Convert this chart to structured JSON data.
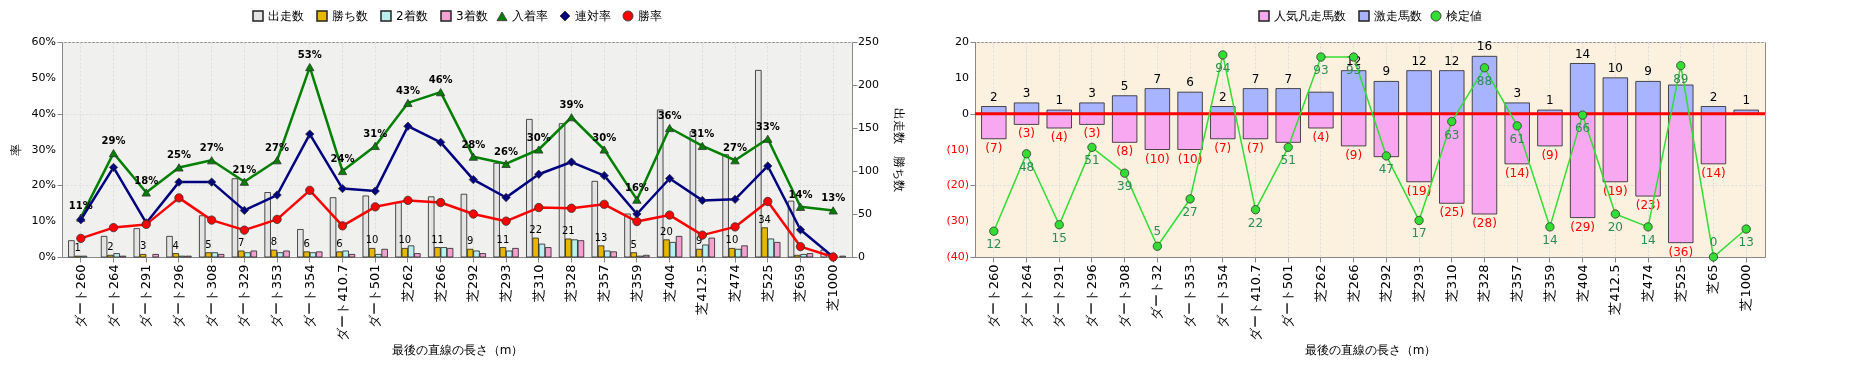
{
  "chart_data": [
    {
      "type": "bar",
      "xlabel": "最後の直線の長さ（m）",
      "ylabel": "率",
      "y2label": "出走数　勝ち数",
      "grid": true,
      "legend": "top",
      "categories": [
        "ダート260",
        "ダート264",
        "ダート291",
        "ダート296",
        "ダート308",
        "ダート329",
        "ダート353",
        "ダート354",
        "ダート410.7",
        "ダート501",
        "芝262",
        "芝266",
        "芝292",
        "芝293",
        "芝310",
        "芝328",
        "芝357",
        "芝359",
        "芝404",
        "芝412.5",
        "芝474",
        "芝525",
        "芝659",
        "芝1000"
      ],
      "ylim": [
        0,
        60
      ],
      "yticks": [
        {
          "value": 0,
          "label": "0%"
        },
        {
          "value": 10,
          "label": "10%"
        },
        {
          "value": 20,
          "label": "20%"
        },
        {
          "value": 30,
          "label": "30%"
        },
        {
          "value": 40,
          "label": "40%"
        },
        {
          "value": 50,
          "label": "50%"
        },
        {
          "value": 60,
          "label": "60%"
        }
      ],
      "y2lim": [
        0,
        250
      ],
      "y2ticks": [
        0,
        50,
        100,
        150,
        200,
        250
      ],
      "series": [
        {
          "name": "出走数",
          "axis": "y2",
          "color": "#e4e4e4",
          "values": [
            19,
            24,
            33,
            24,
            48,
            91,
            75,
            32,
            69,
            71,
            63,
            70,
            73,
            109,
            160,
            155,
            88,
            50,
            171,
            146,
            119,
            217,
            65,
            8
          ]
        },
        {
          "name": "勝ち数",
          "axis": "y2",
          "color": "#e8b800",
          "values": [
            1,
            2,
            3,
            4,
            5,
            7,
            8,
            6,
            6,
            10,
            10,
            11,
            9,
            11,
            22,
            21,
            13,
            5,
            20,
            9,
            10,
            34,
            2,
            0
          ],
          "value_labels": [
            "1",
            "2",
            "3",
            "4",
            "5",
            "7",
            "8",
            "6",
            "6",
            "10",
            "10",
            "11",
            "9",
            "11",
            "22",
            "21",
            "13",
            "5",
            "20",
            "9",
            "10",
            "34",
            null,
            null
          ]
        },
        {
          "name": "2着数",
          "axis": "y2",
          "color": "#b8f0f0",
          "values": [
            1,
            4,
            0,
            1,
            5,
            5,
            5,
            5,
            7,
            3,
            13,
            11,
            7,
            7,
            15,
            20,
            7,
            1,
            17,
            14,
            9,
            21,
            3,
            0
          ]
        },
        {
          "name": "3着数",
          "axis": "y2",
          "color": "#f4a0d0",
          "values": [
            0,
            1,
            3,
            1,
            3,
            7,
            7,
            6,
            3,
            9,
            4,
            10,
            4,
            10,
            11,
            19,
            6,
            2,
            24,
            22,
            13,
            17,
            4,
            1
          ]
        },
        {
          "name": "入着率",
          "type": "line",
          "color": "#008000",
          "marker": "triangle",
          "values": [
            11,
            29,
            18,
            25,
            27,
            21,
            27,
            53,
            24,
            31,
            43,
            46,
            28,
            26,
            30,
            39,
            30,
            16,
            36,
            31,
            27,
            33,
            14,
            13
          ],
          "value_labels": [
            "11%",
            "29%",
            "18%",
            "25%",
            "27%",
            "21%",
            "27%",
            "53%",
            "24%",
            "31%",
            "43%",
            "46%",
            "28%",
            "26%",
            "30%",
            "39%",
            "30%",
            "16%",
            "36%",
            "31%",
            "27%",
            "33%",
            "14%",
            "13%"
          ]
        },
        {
          "name": "連対率",
          "type": "line",
          "color": "#000080",
          "marker": "diamond",
          "values": [
            10.4,
            25,
            9.5,
            20.9,
            20.9,
            13,
            17.3,
            34.3,
            19.1,
            18.4,
            36.5,
            32,
            21.6,
            16.6,
            23.1,
            26.5,
            22.7,
            12,
            21.9,
            15.8,
            16.1,
            25.4,
            7.6,
            0
          ]
        },
        {
          "name": "勝率",
          "type": "line",
          "color": "#ff0000",
          "marker": "circle",
          "values": [
            5.2,
            8.2,
            9.1,
            16.5,
            10.3,
            7.5,
            10.5,
            18.6,
            8.7,
            14,
            15.8,
            15.2,
            12,
            10,
            13.8,
            13.6,
            14.7,
            9.9,
            11.7,
            6.1,
            8.4,
            15.5,
            2.9,
            0
          ]
        }
      ]
    },
    {
      "type": "bar",
      "xlabel": "最後の直線の長さ（m）",
      "grid": true,
      "legend": "top",
      "stacked": true,
      "categories": [
        "ダート260",
        "ダート264",
        "ダート291",
        "ダート296",
        "ダート308",
        "ダート32",
        "ダート353",
        "ダート354",
        "ダート410.7",
        "ダート501",
        "芝262",
        "芝266",
        "芝292",
        "芝293",
        "芝310",
        "芝328",
        "芝357",
        "芝359",
        "芝404",
        "芝412.5",
        "芝474",
        "芝525",
        "芝65",
        "芝1000"
      ],
      "ylim": [
        -40,
        20
      ],
      "yticks": [
        {
          "value": -40,
          "label": "(40)"
        },
        {
          "value": -30,
          "label": "(30)"
        },
        {
          "value": -20,
          "label": "(20)"
        },
        {
          "value": -10,
          "label": "(10)"
        },
        0,
        10,
        20
      ],
      "y2lim": [
        0,
        100
      ],
      "ref_lines": [
        {
          "axis": "y",
          "value": 0,
          "color": "#ff0000"
        }
      ],
      "series": [
        {
          "name": "人気凡走馬数",
          "color": "#f8a8f0",
          "values": [
            -7,
            -3,
            -4,
            -3,
            -8,
            -10,
            -10,
            -7,
            -7,
            -8,
            -4,
            -9,
            -12,
            -19,
            -25,
            -28,
            -14,
            -9,
            -29,
            -19,
            -23,
            -36,
            -14,
            null
          ],
          "value_labels": [
            "(7)",
            "(3)",
            "(4)",
            "(3)",
            "(8)",
            "(10)",
            "(10)",
            "(7)",
            "(7)",
            null,
            "(4)",
            "(9)",
            null,
            "(19)",
            "(25)",
            "(28)",
            "(14)",
            "(9)",
            "(29)",
            "(19)",
            "(23)",
            "(36)",
            "(14)",
            null
          ]
        },
        {
          "name": "激走馬数",
          "color": "#a8b4ff",
          "values": [
            2,
            3,
            1,
            3,
            5,
            7,
            6,
            2,
            7,
            7,
            6,
            12,
            9,
            12,
            12,
            16,
            3,
            1,
            14,
            10,
            9,
            8,
            2,
            1
          ],
          "value_labels": [
            "2",
            "3",
            "1",
            "3",
            "5",
            "7",
            "6",
            "2",
            "7",
            "7",
            null,
            "12",
            "9",
            "12",
            "12",
            "16",
            "3",
            "1",
            "14",
            "10",
            "9",
            null,
            "2",
            "1"
          ]
        },
        {
          "name": "検定値",
          "type": "line",
          "axis": "y2",
          "color": "#33dd33",
          "marker": "circle",
          "values": [
            12,
            48,
            15,
            51,
            39,
            5,
            27,
            94,
            22,
            51,
            93,
            93,
            47,
            17,
            63,
            88,
            61,
            14,
            66,
            20,
            14,
            89,
            0,
            13
          ],
          "value_labels": [
            "12",
            "48",
            "15",
            "51",
            "39",
            "5",
            "27",
            "94",
            "22",
            "51",
            "93",
            "93",
            "47",
            "17",
            "63",
            "88",
            "61",
            "14",
            "66",
            "20",
            "14",
            "89",
            "0",
            "13"
          ]
        }
      ]
    }
  ]
}
